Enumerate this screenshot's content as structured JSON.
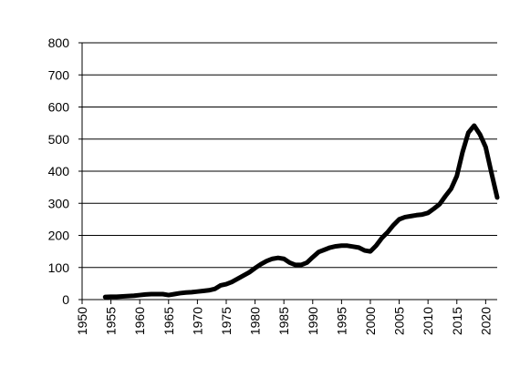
{
  "chart_data": {
    "type": "line",
    "title": "",
    "xlabel": "",
    "ylabel": "",
    "xlim": [
      1950,
      2022
    ],
    "ylim": [
      0,
      800
    ],
    "grid": true,
    "legend": "none",
    "x_ticks": [
      1950,
      1955,
      1960,
      1965,
      1970,
      1975,
      1980,
      1985,
      1990,
      1995,
      2000,
      2005,
      2010,
      2015,
      2020
    ],
    "y_ticks": [
      0,
      100,
      200,
      300,
      400,
      500,
      600,
      700,
      800
    ],
    "colors": {
      "line": "#000000",
      "grid": "#000000",
      "axis": "#000000"
    },
    "series": [
      {
        "x": [
          1954,
          1955,
          1956,
          1957,
          1958,
          1959,
          1960,
          1961,
          1962,
          1963,
          1964,
          1965,
          1966,
          1967,
          1968,
          1969,
          1970,
          1971,
          1972,
          1973,
          1974,
          1975,
          1976,
          1977,
          1978,
          1979,
          1980,
          1981,
          1982,
          1983,
          1984,
          1985,
          1986,
          1987,
          1988,
          1989,
          1990,
          1991,
          1992,
          1993,
          1994,
          1995,
          1996,
          1997,
          1998,
          1999,
          2000,
          2001,
          2002,
          2003,
          2004,
          2005,
          2006,
          2007,
          2008,
          2009,
          2010,
          2011,
          2012,
          2013,
          2014,
          2015,
          2016,
          2017,
          2018,
          2019,
          2020,
          2021,
          2022
        ],
        "y": [
          8,
          9,
          9,
          10,
          11,
          12,
          14,
          16,
          17,
          17,
          17,
          14,
          17,
          20,
          22,
          23,
          25,
          27,
          29,
          33,
          44,
          48,
          55,
          65,
          75,
          85,
          98,
          110,
          120,
          127,
          130,
          127,
          115,
          108,
          108,
          115,
          132,
          148,
          155,
          162,
          166,
          168,
          168,
          165,
          162,
          153,
          150,
          168,
          192,
          210,
          232,
          250,
          257,
          260,
          263,
          265,
          270,
          283,
          297,
          322,
          345,
          385,
          460,
          520,
          542,
          515,
          475,
          395,
          318
        ]
      }
    ]
  }
}
